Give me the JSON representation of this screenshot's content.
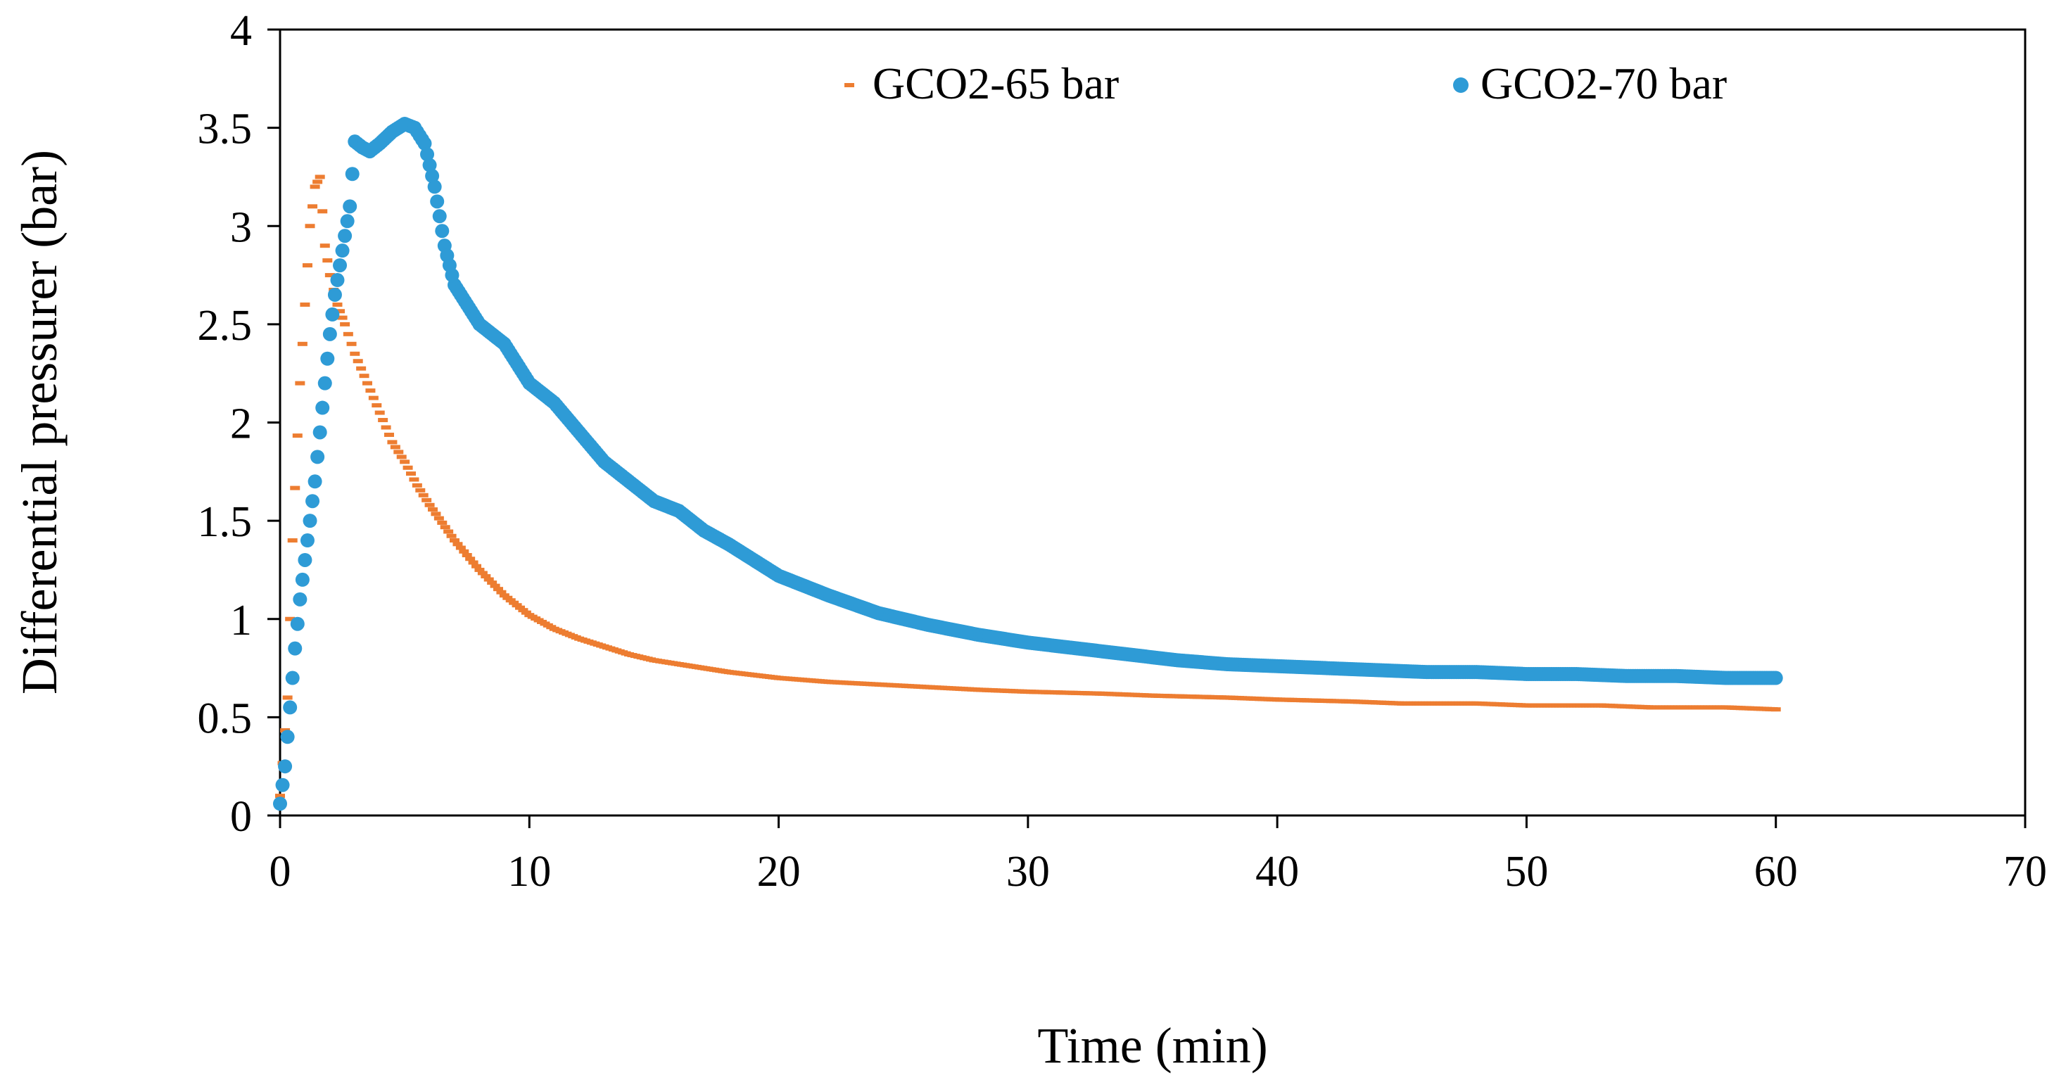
{
  "chart_data": {
    "type": "scatter",
    "title": "",
    "xlabel": "Time (min)",
    "ylabel": "Differential pressurer (bar)",
    "xlim": [
      0,
      70
    ],
    "ylim": [
      0,
      4
    ],
    "x_ticks": [
      "0",
      "10",
      "20",
      "30",
      "40",
      "50",
      "60",
      "70"
    ],
    "y_ticks": [
      "0",
      "0.5",
      "1",
      "1.5",
      "2",
      "2.5",
      "3",
      "3.5",
      "4"
    ],
    "grid": false,
    "legend_position": "top-center",
    "series": [
      {
        "name": "GCO2-65 bar",
        "marker": "dash",
        "color": "#ED7D31",
        "x": [
          0,
          0.3,
          0.5,
          0.8,
          1.0,
          1.2,
          1.4,
          1.6,
          1.8,
          2.0,
          2.3,
          2.6,
          3.0,
          3.5,
          4.0,
          4.5,
          5.0,
          5.5,
          6.0,
          7.0,
          8.0,
          9.0,
          10.0,
          11.0,
          12.0,
          13.0,
          14.0,
          15.0,
          16.0,
          18.0,
          20.0,
          22.0,
          25.0,
          28.0,
          30.0,
          33.0,
          35.0,
          38.0,
          40.0,
          43.0,
          45.0,
          48.0,
          50.0,
          53.0,
          55.0,
          58.0,
          60.0
        ],
        "y": [
          0.1,
          0.6,
          1.4,
          2.2,
          2.6,
          3.0,
          3.2,
          3.25,
          2.9,
          2.75,
          2.6,
          2.5,
          2.35,
          2.2,
          2.05,
          1.9,
          1.8,
          1.68,
          1.58,
          1.4,
          1.25,
          1.12,
          1.02,
          0.95,
          0.9,
          0.86,
          0.82,
          0.79,
          0.77,
          0.73,
          0.7,
          0.68,
          0.66,
          0.64,
          0.63,
          0.62,
          0.61,
          0.6,
          0.59,
          0.58,
          0.57,
          0.57,
          0.56,
          0.56,
          0.55,
          0.55,
          0.54
        ]
      },
      {
        "name": "GCO2-70 bar",
        "marker": "circle",
        "color": "#2E9BD6",
        "x": [
          0,
          0.2,
          0.4,
          0.6,
          0.8,
          1.0,
          1.2,
          1.4,
          1.6,
          1.8,
          2.0,
          2.2,
          2.4,
          2.6,
          2.8,
          3.0,
          3.3,
          3.6,
          4.0,
          4.5,
          5.0,
          5.4,
          5.8,
          6.2,
          6.6,
          7.0,
          7.5,
          8.0,
          8.5,
          9.0,
          9.5,
          10.0,
          11.0,
          12.0,
          13.0,
          14.0,
          15.0,
          16.0,
          17.0,
          18.0,
          19.0,
          20.0,
          22.0,
          24.0,
          26.0,
          28.0,
          30.0,
          32.0,
          34.0,
          36.0,
          38.0,
          40.0,
          42.0,
          44.0,
          46.0,
          48.0,
          50.0,
          52.0,
          54.0,
          56.0,
          58.0,
          60.0
        ],
        "y": [
          0.06,
          0.25,
          0.55,
          0.85,
          1.1,
          1.3,
          1.5,
          1.7,
          1.95,
          2.2,
          2.45,
          2.65,
          2.8,
          2.95,
          3.1,
          3.43,
          3.4,
          3.38,
          3.42,
          3.48,
          3.52,
          3.5,
          3.42,
          3.2,
          2.9,
          2.7,
          2.6,
          2.5,
          2.45,
          2.4,
          2.3,
          2.2,
          2.1,
          1.95,
          1.8,
          1.7,
          1.6,
          1.55,
          1.45,
          1.38,
          1.3,
          1.22,
          1.12,
          1.03,
          0.97,
          0.92,
          0.88,
          0.85,
          0.82,
          0.79,
          0.77,
          0.76,
          0.75,
          0.74,
          0.73,
          0.73,
          0.72,
          0.72,
          0.71,
          0.71,
          0.7,
          0.7
        ]
      }
    ]
  }
}
